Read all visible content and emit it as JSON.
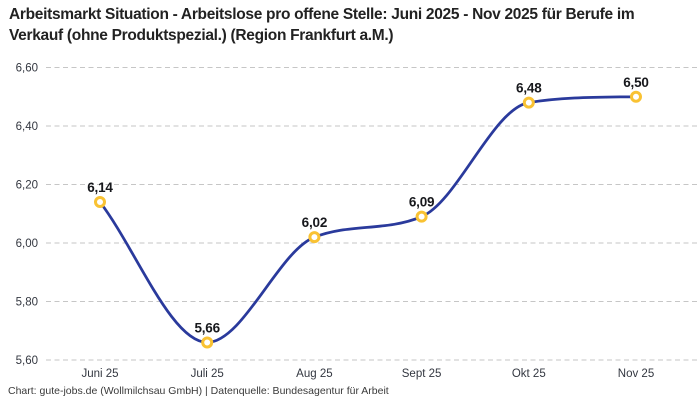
{
  "title": "Arbeitsmarkt Situation - Arbeitslose pro offene Stelle: Juni 2025 - Nov 2025 für Berufe im Verkauf (ohne Produktspezial.) (Region Frankfurt a.M.)",
  "footer": "Chart: gute-jobs.de (Wollmilchsau GmbH) | Datenquelle: Bundesagentur für Arbeit",
  "chart_data": {
    "type": "line",
    "title": "Arbeitsmarkt Situation - Arbeitslose pro offene Stelle: Juni 2025 - Nov 2025 für Berufe im Verkauf (ohne Produktspezial.) (Region Frankfurt a.M.)",
    "categories": [
      "Juni 25",
      "Juli 25",
      "Aug 25",
      "Sept 25",
      "Okt 25",
      "Nov 25"
    ],
    "values": [
      6.14,
      5.66,
      6.02,
      6.09,
      6.48,
      6.5
    ],
    "value_labels": [
      "6,14",
      "5,66",
      "6,02",
      "6,09",
      "6,48",
      "6,50"
    ],
    "y_ticks": [
      {
        "value": 5.6,
        "label": "5,60"
      },
      {
        "value": 5.8,
        "label": "5,80"
      },
      {
        "value": 6.0,
        "label": "6,00"
      },
      {
        "value": 6.2,
        "label": "6,20"
      },
      {
        "value": 6.4,
        "label": "6,40"
      },
      {
        "value": 6.6,
        "label": "6,60"
      }
    ],
    "ylim": [
      5.6,
      6.6
    ],
    "xlabel": "",
    "ylabel": "",
    "legend": "none",
    "grid": "horizontal-dashed",
    "curve": "monotone",
    "colors": {
      "line": "#2A3A9C",
      "marker_ring": "#F9C233",
      "marker_fill": "#FFFFFF",
      "gridline": "#C6C6C6",
      "tick_text": "#333740",
      "label_text": "#17181C",
      "title_text": "#222222",
      "background": "#FFFFFF"
    }
  }
}
